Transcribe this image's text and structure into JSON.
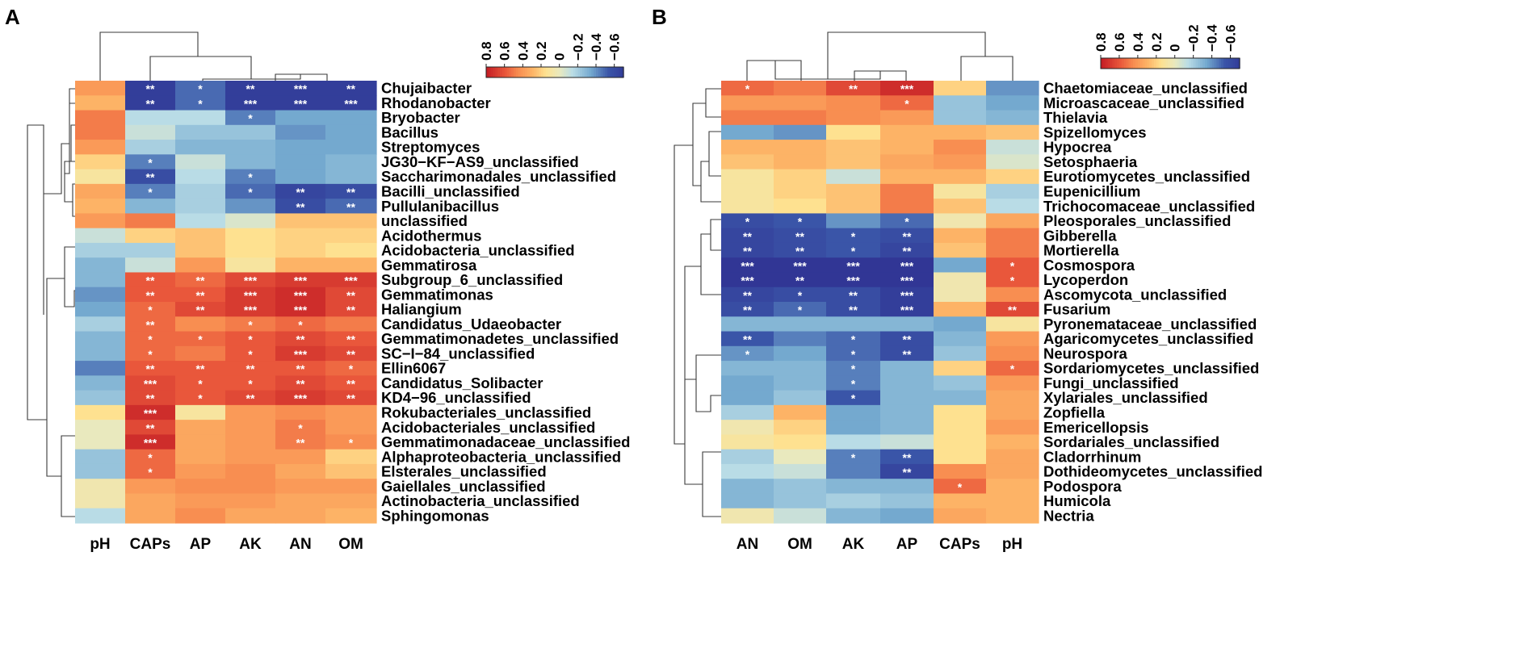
{
  "colors": {
    "low": "#313695",
    "mid": "#FEE190",
    "high": "#C51F25",
    "star": "#ffffff"
  },
  "chart_data": [
    {
      "type": "heatmap",
      "panel": "A",
      "legend": {
        "position": "top-right",
        "ticks": [
          "0.8",
          "0.6",
          "0.4",
          "0.2",
          "0",
          "−0.2",
          "−0.4",
          "−0.6"
        ],
        "range": [
          -0.7,
          0.8
        ]
      },
      "columns": [
        "pH",
        "CAPs",
        "AP",
        "AK",
        "AN",
        "OM"
      ],
      "rows": [
        "Chujaibacter",
        "Rhodanobacter",
        "Bryobacter",
        "Bacillus",
        "Streptomyces",
        "JG30−KF−AS9_unclassified",
        "Saccharimonadales_unclassified",
        "Bacilli_unclassified",
        "Pullulanibacillus",
        "unclassified",
        "Acidothermus",
        "Acidobacteria_unclassified",
        "Gemmatirosa",
        "Subgroup_6_unclassified",
        "Gemmatimonas",
        "Haliangium",
        "Candidatus_Udaeobacter",
        "Gemmatimonadetes_unclassified",
        "SC−I−84_unclassified",
        "Ellin6067",
        "Candidatus_Solibacter",
        "KD4−96_unclassified",
        "Rokubacteriales_unclassified",
        "Acidobacteriales_unclassified",
        "Gemmatimonadaceae_unclassified",
        "Alphaproteobacteria_unclassified",
        "Elsterales_unclassified",
        "Gaiellales_unclassified",
        "Actinobacteria_unclassified",
        "Sphingomonas"
      ],
      "values": [
        [
          0.4,
          -0.7,
          -0.5,
          -0.7,
          -0.7,
          -0.7
        ],
        [
          0.3,
          -0.7,
          -0.5,
          -0.7,
          -0.7,
          -0.7
        ],
        [
          0.5,
          -0.15,
          -0.15,
          -0.45,
          -0.35,
          -0.35
        ],
        [
          0.5,
          -0.1,
          -0.25,
          -0.25,
          -0.4,
          -0.35
        ],
        [
          0.4,
          -0.2,
          -0.3,
          -0.3,
          -0.35,
          -0.35
        ],
        [
          0.2,
          -0.45,
          -0.1,
          -0.3,
          -0.35,
          -0.3
        ],
        [
          0.1,
          -0.6,
          -0.15,
          -0.45,
          -0.35,
          -0.3
        ],
        [
          0.35,
          -0.45,
          -0.2,
          -0.5,
          -0.65,
          -0.6
        ],
        [
          0.3,
          -0.3,
          -0.2,
          -0.4,
          -0.6,
          -0.5
        ],
        [
          0.4,
          0.5,
          -0.15,
          -0.05,
          0.25,
          0.25
        ],
        [
          -0.1,
          0.2,
          0.25,
          0.15,
          0.2,
          0.2
        ],
        [
          -0.2,
          -0.2,
          0.25,
          0.15,
          0.2,
          0.15
        ],
        [
          -0.3,
          -0.1,
          0.4,
          0.1,
          0.3,
          0.3
        ],
        [
          -0.3,
          0.6,
          0.55,
          0.65,
          0.7,
          0.7
        ],
        [
          -0.4,
          0.6,
          0.6,
          0.7,
          0.75,
          0.65
        ],
        [
          -0.35,
          0.55,
          0.65,
          0.7,
          0.75,
          0.65
        ],
        [
          -0.2,
          0.55,
          0.45,
          0.5,
          0.55,
          0.5
        ],
        [
          -0.3,
          0.55,
          0.55,
          0.6,
          0.65,
          0.6
        ],
        [
          -0.3,
          0.55,
          0.5,
          0.6,
          0.7,
          0.65
        ],
        [
          -0.45,
          0.6,
          0.6,
          0.6,
          0.6,
          0.55
        ],
        [
          -0.3,
          0.65,
          0.6,
          0.6,
          0.65,
          0.6
        ],
        [
          -0.25,
          0.65,
          0.6,
          0.65,
          0.7,
          0.65
        ],
        [
          0.15,
          0.75,
          0.1,
          0.4,
          0.45,
          0.4
        ],
        [
          0.0,
          0.65,
          0.35,
          0.4,
          0.5,
          0.4
        ],
        [
          0.0,
          0.75,
          0.35,
          0.4,
          0.5,
          0.45
        ],
        [
          -0.25,
          0.55,
          0.35,
          0.4,
          0.4,
          0.2
        ],
        [
          -0.25,
          0.55,
          0.4,
          0.45,
          0.35,
          0.25
        ],
        [
          0.05,
          0.4,
          0.45,
          0.45,
          0.4,
          0.4
        ],
        [
          0.05,
          0.35,
          0.4,
          0.4,
          0.35,
          0.35
        ],
        [
          -0.15,
          0.35,
          0.45,
          0.35,
          0.35,
          0.3
        ]
      ],
      "stars": [
        [
          "",
          "**",
          "*",
          "**",
          "***",
          "**"
        ],
        [
          "",
          "**",
          "*",
          "***",
          "***",
          "***"
        ],
        [
          "",
          "",
          "",
          "*",
          "",
          ""
        ],
        [
          "",
          "",
          "",
          "",
          "",
          ""
        ],
        [
          "",
          "",
          "",
          "",
          "",
          ""
        ],
        [
          "",
          "*",
          "",
          "",
          "",
          ""
        ],
        [
          "",
          "**",
          "",
          "*",
          "",
          ""
        ],
        [
          "",
          "*",
          "",
          "*",
          "**",
          "**"
        ],
        [
          "",
          "",
          "",
          "",
          "**",
          "**"
        ],
        [
          "",
          "",
          "",
          "",
          "",
          ""
        ],
        [
          "",
          "",
          "",
          "",
          "",
          ""
        ],
        [
          "",
          "",
          "",
          "",
          "",
          ""
        ],
        [
          "",
          "",
          "",
          "",
          "",
          ""
        ],
        [
          "",
          "**",
          "**",
          "***",
          "***",
          "***"
        ],
        [
          "",
          "**",
          "**",
          "***",
          "***",
          "**"
        ],
        [
          "",
          "*",
          "**",
          "***",
          "***",
          "**"
        ],
        [
          "",
          "**",
          "",
          "*",
          "*",
          ""
        ],
        [
          "",
          "*",
          "*",
          "*",
          "**",
          "**"
        ],
        [
          "",
          "*",
          "",
          "*",
          "***",
          "**"
        ],
        [
          "",
          "**",
          "**",
          "**",
          "**",
          "*"
        ],
        [
          "",
          "***",
          "*",
          "*",
          "**",
          "**"
        ],
        [
          "",
          "**",
          "*",
          "**",
          "***",
          "**"
        ],
        [
          "",
          "***",
          "",
          "",
          "",
          ""
        ],
        [
          "",
          "**",
          "",
          "",
          "*",
          ""
        ],
        [
          "",
          "***",
          "",
          "",
          "**",
          "*"
        ],
        [
          "",
          "*",
          "",
          "",
          "",
          ""
        ],
        [
          "",
          "*",
          "",
          "",
          "",
          ""
        ],
        [
          "",
          "",
          "",
          "",
          "",
          ""
        ],
        [
          "",
          "",
          "",
          "",
          "",
          ""
        ],
        [
          "",
          "",
          "",
          "",
          "",
          ""
        ]
      ]
    },
    {
      "type": "heatmap",
      "panel": "B",
      "legend": {
        "position": "top-right",
        "ticks": [
          "0.8",
          "0.6",
          "0.4",
          "0.2",
          "0",
          "−0.2",
          "−0.4",
          "−0.6"
        ],
        "range": [
          -0.7,
          0.8
        ]
      },
      "columns": [
        "AN",
        "OM",
        "AK",
        "AP",
        "CAPs",
        "pH"
      ],
      "rows": [
        "Chaetomiaceae_unclassified",
        "Microascaceae_unclassified",
        "Thielavia",
        "Spizellomyces",
        "Hypocrea",
        "Setosphaeria",
        "Eurotiomycetes_unclassified",
        "Eupenicillium",
        "Trichocomaceae_unclassified",
        "Pleosporales_unclassified",
        "Gibberella",
        "Mortierella",
        "Cosmospora",
        "Lycoperdon",
        "Ascomycota_unclassified",
        "Fusarium",
        "Pyronemataceae_unclassified",
        "Agaricomycetes_unclassified",
        "Neurospora",
        "Sordariomycetes_unclassified",
        "Fungi_unclassified",
        "Xylariales_unclassified",
        "Zopfiella",
        "Emericellopsis",
        "Sordariales_unclassified",
        "Cladorrhinum",
        "Dothideomycetes_unclassified",
        "Podospora",
        "Humicola",
        "Nectria"
      ],
      "values": [
        [
          0.55,
          0.5,
          0.65,
          0.75,
          0.2,
          -0.4
        ],
        [
          0.4,
          0.4,
          0.45,
          0.55,
          -0.25,
          -0.35
        ],
        [
          0.5,
          0.5,
          0.45,
          0.4,
          -0.25,
          -0.3
        ],
        [
          -0.35,
          -0.4,
          0.15,
          0.3,
          0.3,
          0.25
        ],
        [
          0.3,
          0.3,
          0.25,
          0.3,
          0.45,
          -0.1
        ],
        [
          0.25,
          0.3,
          0.25,
          0.35,
          0.4,
          -0.05
        ],
        [
          0.1,
          0.2,
          -0.1,
          0.3,
          0.3,
          0.2
        ],
        [
          0.1,
          0.2,
          0.25,
          0.5,
          0.1,
          -0.2
        ],
        [
          0.1,
          0.15,
          0.25,
          0.5,
          0.25,
          -0.15
        ],
        [
          -0.6,
          -0.55,
          -0.4,
          -0.5,
          0.05,
          0.35
        ],
        [
          -0.65,
          -0.6,
          -0.55,
          -0.6,
          0.3,
          0.5
        ],
        [
          -0.65,
          -0.6,
          -0.55,
          -0.65,
          0.25,
          0.5
        ],
        [
          -0.75,
          -0.75,
          -0.75,
          -0.75,
          -0.35,
          0.6
        ],
        [
          -0.75,
          -0.75,
          -0.75,
          -0.75,
          0.05,
          0.6
        ],
        [
          -0.65,
          -0.6,
          -0.6,
          -0.7,
          0.05,
          0.45
        ],
        [
          -0.6,
          -0.5,
          -0.6,
          -0.7,
          0.3,
          0.65
        ],
        [
          -0.3,
          -0.3,
          -0.3,
          -0.3,
          -0.35,
          0.1
        ],
        [
          -0.55,
          -0.45,
          -0.5,
          -0.6,
          -0.3,
          0.4
        ],
        [
          -0.4,
          -0.35,
          -0.5,
          -0.6,
          -0.25,
          0.45
        ],
        [
          -0.3,
          -0.3,
          -0.45,
          -0.3,
          0.2,
          0.55
        ],
        [
          -0.35,
          -0.3,
          -0.45,
          -0.3,
          -0.25,
          0.4
        ],
        [
          -0.35,
          -0.25,
          -0.55,
          -0.3,
          -0.3,
          0.35
        ],
        [
          -0.2,
          0.3,
          -0.35,
          -0.3,
          0.15,
          0.35
        ],
        [
          0.05,
          0.2,
          -0.35,
          -0.3,
          0.15,
          0.4
        ],
        [
          0.1,
          0.15,
          -0.15,
          -0.1,
          0.15,
          0.3
        ],
        [
          -0.2,
          0.0,
          -0.45,
          -0.55,
          0.15,
          0.35
        ],
        [
          -0.15,
          -0.1,
          -0.45,
          -0.65,
          0.45,
          0.35
        ],
        [
          -0.3,
          -0.25,
          -0.3,
          -0.3,
          0.55,
          0.3
        ],
        [
          -0.3,
          -0.25,
          -0.2,
          -0.25,
          0.3,
          0.3
        ],
        [
          0.05,
          -0.1,
          -0.3,
          -0.35,
          0.35,
          0.3
        ]
      ],
      "stars": [
        [
          "*",
          "",
          "**",
          "***",
          "",
          ""
        ],
        [
          "",
          "",
          "",
          "*",
          "",
          ""
        ],
        [
          "",
          "",
          "",
          "",
          "",
          ""
        ],
        [
          "",
          "",
          "",
          "",
          "",
          ""
        ],
        [
          "",
          "",
          "",
          "",
          "",
          ""
        ],
        [
          "",
          "",
          "",
          "",
          "",
          ""
        ],
        [
          "",
          "",
          "",
          "",
          "",
          ""
        ],
        [
          "",
          "",
          "",
          "",
          "",
          ""
        ],
        [
          "",
          "",
          "",
          "",
          "",
          ""
        ],
        [
          "*",
          "*",
          "",
          "*",
          "",
          ""
        ],
        [
          "**",
          "**",
          "*",
          "**",
          "",
          ""
        ],
        [
          "**",
          "**",
          "*",
          "**",
          "",
          ""
        ],
        [
          "***",
          "***",
          "***",
          "***",
          "",
          "*"
        ],
        [
          "***",
          "**",
          "***",
          "***",
          "",
          "*"
        ],
        [
          "**",
          "*",
          "**",
          "***",
          "",
          ""
        ],
        [
          "**",
          "*",
          "**",
          "***",
          "",
          "**"
        ],
        [
          "",
          "",
          "",
          "",
          "",
          ""
        ],
        [
          "**",
          "",
          "*",
          "**",
          "",
          ""
        ],
        [
          "*",
          "",
          "*",
          "**",
          "",
          ""
        ],
        [
          "",
          "",
          "*",
          "",
          "",
          "*"
        ],
        [
          "",
          "",
          "*",
          "",
          "",
          ""
        ],
        [
          "",
          "",
          "*",
          "",
          "",
          ""
        ],
        [
          "",
          "",
          "",
          "",
          "",
          ""
        ],
        [
          "",
          "",
          "",
          "",
          "",
          ""
        ],
        [
          "",
          "",
          "",
          "",
          "",
          ""
        ],
        [
          "",
          "",
          "*",
          "**",
          "",
          ""
        ],
        [
          "",
          "",
          "",
          "**",
          "",
          ""
        ],
        [
          "",
          "",
          "",
          "",
          "*",
          ""
        ],
        [
          "",
          "",
          "",
          "",
          "",
          ""
        ],
        [
          "",
          "",
          "",
          "",
          "",
          ""
        ]
      ]
    }
  ]
}
